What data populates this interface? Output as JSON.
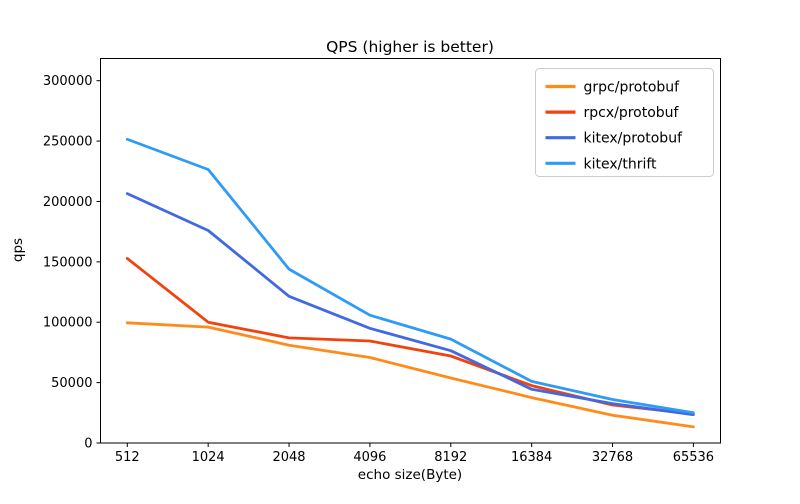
{
  "chart_data": {
    "type": "line",
    "title": "QPS (higher is better)",
    "xlabel": "echo size(Byte)",
    "ylabel": "qps",
    "categories": [
      "512",
      "1024",
      "2048",
      "4096",
      "8192",
      "16384",
      "32768",
      "65536"
    ],
    "y_ticks": [
      0,
      50000,
      100000,
      150000,
      200000,
      250000,
      300000
    ],
    "ylim": [
      0,
      318700
    ],
    "grid": false,
    "legend_position": "upper right",
    "series": [
      {
        "name": "grpc/protobuf",
        "color": "#ff8c1a",
        "values": [
          99500,
          96000,
          81000,
          70800,
          53800,
          37600,
          23000,
          13300
        ]
      },
      {
        "name": "rpcx/protobuf",
        "color": "#f2420d",
        "values": [
          152800,
          100000,
          87000,
          84500,
          72000,
          47500,
          31500,
          24000
        ]
      },
      {
        "name": "kitex/protobuf",
        "color": "#4169e1",
        "values": [
          206500,
          176000,
          121500,
          95000,
          76400,
          44500,
          32600,
          23400
        ]
      },
      {
        "name": "kitex/thrift",
        "color": "#2e9bf5",
        "values": [
          251500,
          226500,
          144000,
          105800,
          86000,
          51000,
          36000,
          25000
        ]
      }
    ]
  },
  "colors": {
    "spine": "#000000",
    "legend_border": "#cccccc",
    "background": "#ffffff"
  }
}
